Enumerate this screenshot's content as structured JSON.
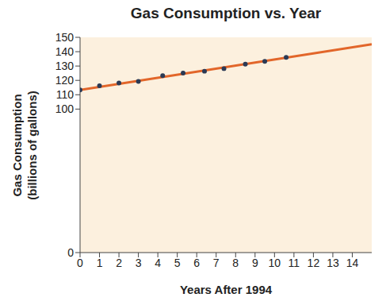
{
  "chart_data": {
    "type": "scatter",
    "title": "Gas Consumption vs. Year",
    "xlabel": "Years After 1994",
    "ylabel": [
      "Gas Consumption",
      "(billions of gallons)"
    ],
    "xlim": [
      0,
      15
    ],
    "xticks": [
      0,
      1,
      2,
      3,
      4,
      5,
      6,
      7,
      8,
      9,
      10,
      11,
      12,
      13,
      14
    ],
    "ylim": [
      0,
      150
    ],
    "yticks": [
      0,
      100,
      110,
      120,
      130,
      140,
      150
    ],
    "grid": false,
    "series": [
      {
        "type": "scatter",
        "color": "#2b3a55",
        "marker": "circle",
        "x": [
          0,
          1,
          2,
          3,
          4.25,
          5.3,
          6.4,
          7.4,
          8.5,
          9.5,
          10.6
        ],
        "values": [
          113.3,
          116.2,
          118.2,
          119.3,
          123.3,
          125.1,
          126.4,
          128.2,
          131.3,
          133.3,
          136.0
        ]
      },
      {
        "type": "line",
        "color": "#e2662a",
        "line_style": "solid",
        "x": [
          0,
          15
        ],
        "values": [
          113.3,
          145.1
        ]
      }
    ]
  }
}
